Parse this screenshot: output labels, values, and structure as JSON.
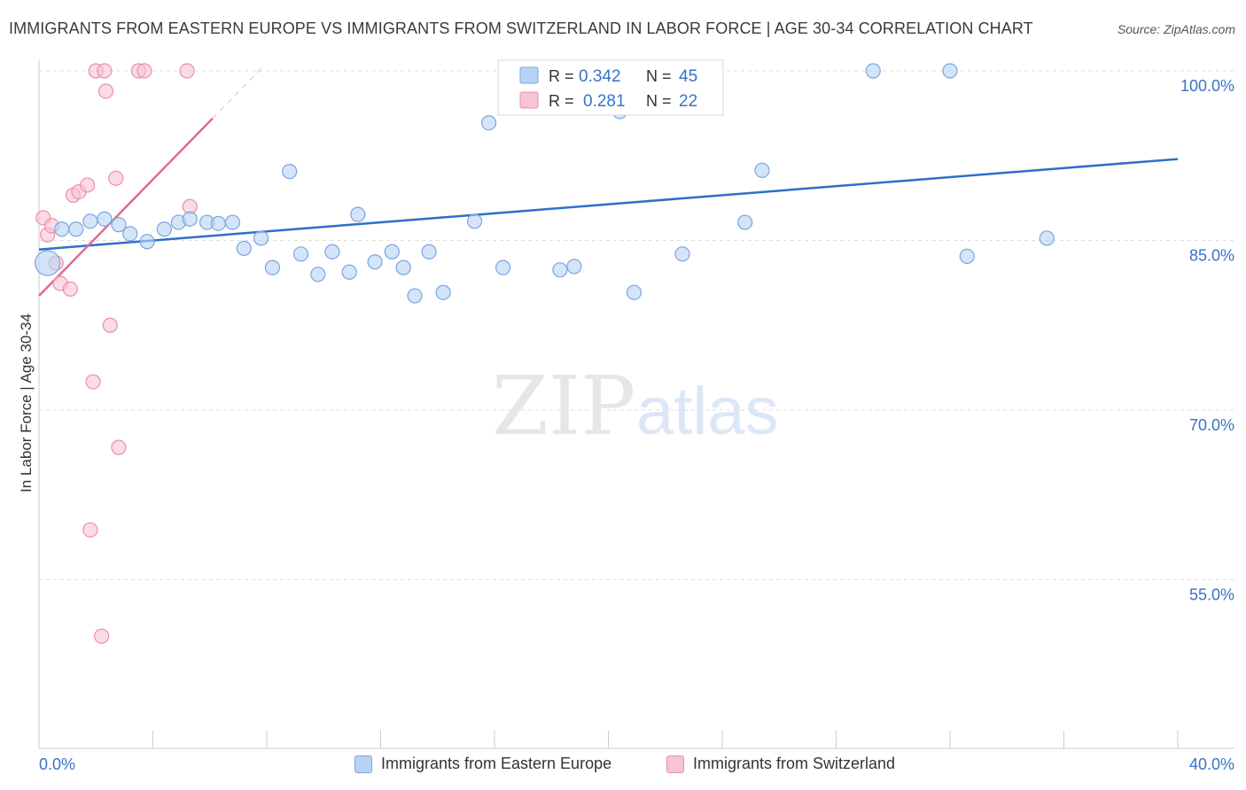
{
  "title": "IMMIGRANTS FROM EASTERN EUROPE VS IMMIGRANTS FROM SWITZERLAND IN LABOR FORCE | AGE 30-34 CORRELATION CHART",
  "source": "Source: ZipAtlas.com",
  "watermark": {
    "zip": "ZIP",
    "atlas": "atlas"
  },
  "colors": {
    "blue_fill": "#b8d2f5",
    "blue_stroke": "#7aa6e0",
    "blue_line": "#2f6fc9",
    "pink_fill": "#f8c3d3",
    "pink_stroke": "#e98fab",
    "pink_line": "#e06b93",
    "tick_label": "#3a72c4",
    "grid": "#dddddd"
  },
  "legend_top": [
    {
      "r_label": "R =",
      "r_value": "0.342",
      "n_label": "N =",
      "n_value": "45"
    },
    {
      "r_label": "R =",
      "r_value": "0.281",
      "n_label": "N =",
      "n_value": "22"
    }
  ],
  "legend_bottom": [
    "Immigrants from Eastern Europe",
    "Immigrants from Switzerland"
  ],
  "chart_data": {
    "type": "scatter",
    "title": "IMMIGRANTS FROM EASTERN EUROPE VS IMMIGRANTS FROM SWITZERLAND IN LABOR FORCE | AGE 30-34 CORRELATION CHART",
    "xlabel": "",
    "ylabel": "In Labor Force | Age 30-34",
    "xlim": [
      0,
      40
    ],
    "ylim": [
      40,
      102.5
    ],
    "x_tick_labels": [
      "0.0%",
      "40.0%"
    ],
    "y_ticks": [
      100,
      85,
      70,
      55
    ],
    "y_tick_labels": [
      "100.0%",
      "85.0%",
      "70.0%",
      "55.0%"
    ],
    "grid": true,
    "legend": "top-center",
    "series": [
      {
        "name": "Immigrants from Eastern Europe",
        "r": 0.342,
        "n": 45,
        "trend": [
          [
            0,
            84.2
          ],
          [
            40,
            92.2
          ]
        ],
        "points": [
          [
            0.3,
            83.0
          ],
          [
            0.8,
            86.0
          ],
          [
            1.3,
            86.0
          ],
          [
            1.8,
            86.7
          ],
          [
            2.3,
            86.9
          ],
          [
            2.8,
            86.4
          ],
          [
            3.2,
            85.6
          ],
          [
            3.8,
            84.9
          ],
          [
            4.4,
            86.0
          ],
          [
            4.9,
            86.6
          ],
          [
            5.3,
            86.9
          ],
          [
            5.9,
            86.6
          ],
          [
            6.3,
            86.5
          ],
          [
            6.8,
            86.6
          ],
          [
            7.2,
            84.3
          ],
          [
            7.8,
            85.2
          ],
          [
            8.2,
            82.6
          ],
          [
            8.8,
            91.1
          ],
          [
            9.2,
            83.8
          ],
          [
            9.8,
            82.0
          ],
          [
            10.3,
            84.0
          ],
          [
            10.9,
            82.2
          ],
          [
            11.2,
            87.3
          ],
          [
            11.8,
            83.1
          ],
          [
            12.4,
            84.0
          ],
          [
            12.8,
            82.6
          ],
          [
            13.2,
            80.1
          ],
          [
            13.7,
            84.0
          ],
          [
            14.2,
            80.4
          ],
          [
            15.3,
            86.7
          ],
          [
            15.8,
            95.4
          ],
          [
            16.3,
            82.6
          ],
          [
            18.0,
            100.0
          ],
          [
            18.3,
            82.4
          ],
          [
            18.8,
            82.7
          ],
          [
            20.4,
            96.4
          ],
          [
            20.9,
            80.4
          ],
          [
            21.3,
            100.0
          ],
          [
            22.6,
            83.8
          ],
          [
            24.8,
            86.6
          ],
          [
            25.4,
            91.2
          ],
          [
            29.3,
            100.0
          ],
          [
            32.0,
            100.0
          ],
          [
            32.6,
            83.6
          ],
          [
            35.4,
            85.2
          ]
        ]
      },
      {
        "name": "Immigrants from Switzerland",
        "r": 0.281,
        "n": 22,
        "trend": [
          [
            0,
            80.1
          ],
          [
            6.1,
            95.8
          ]
        ],
        "trend_dashed": [
          [
            6.1,
            95.8
          ],
          [
            7.8,
            100.2
          ]
        ],
        "points": [
          [
            0.15,
            87.0
          ],
          [
            0.3,
            85.5
          ],
          [
            0.45,
            86.3
          ],
          [
            0.6,
            83.0
          ],
          [
            0.75,
            81.2
          ],
          [
            1.1,
            80.7
          ],
          [
            1.2,
            89.0
          ],
          [
            1.4,
            89.3
          ],
          [
            1.7,
            89.9
          ],
          [
            1.8,
            59.4
          ],
          [
            1.9,
            72.5
          ],
          [
            2.0,
            100.0
          ],
          [
            2.2,
            50.0
          ],
          [
            2.3,
            100.0
          ],
          [
            2.35,
            98.2
          ],
          [
            2.5,
            77.5
          ],
          [
            2.7,
            90.5
          ],
          [
            2.8,
            66.7
          ],
          [
            3.5,
            100.0
          ],
          [
            3.7,
            100.0
          ],
          [
            5.2,
            100.0
          ],
          [
            5.3,
            88.0
          ]
        ]
      }
    ]
  }
}
